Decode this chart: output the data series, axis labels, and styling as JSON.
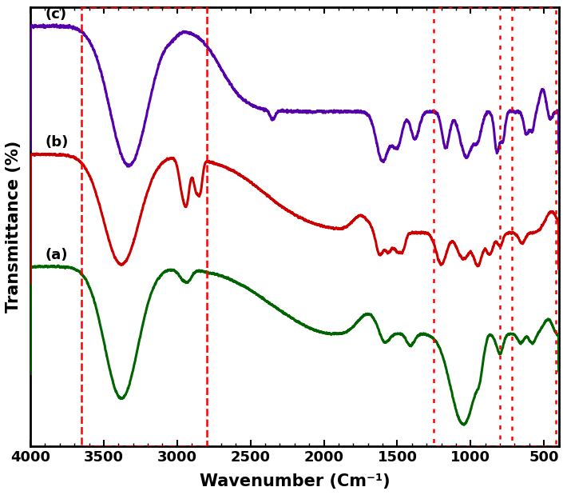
{
  "title": "",
  "xlabel": "Wavenumber (Cm⁻¹)",
  "ylabel": "Transmittance (%)",
  "xlim": [
    4000,
    400
  ],
  "xticks": [
    4000,
    3500,
    3000,
    2500,
    2000,
    1500,
    1000,
    500
  ],
  "colors": {
    "a": "#006400",
    "b": "#cc0000",
    "c": "#5500aa"
  },
  "labels": {
    "a": "(a)",
    "b": "(b)",
    "c": "(c)"
  },
  "background_color": "#ffffff",
  "linewidth": 2.2
}
